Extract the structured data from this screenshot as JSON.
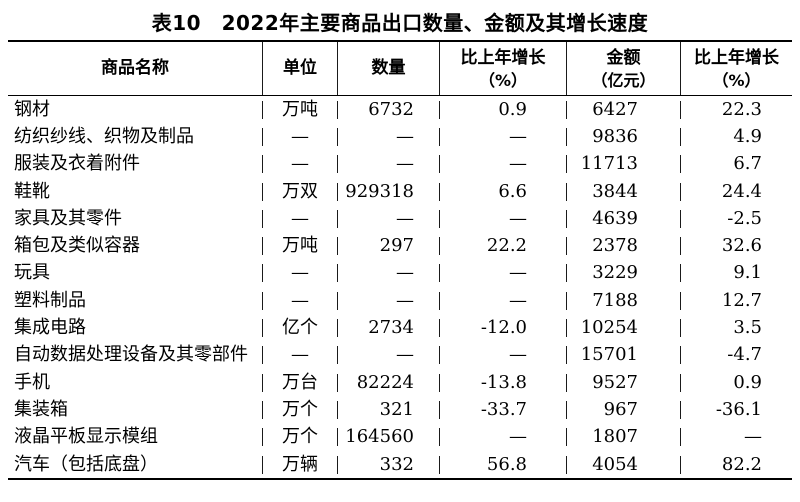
{
  "title": "表10　2022年主要商品出口数量、金额及其增长速度",
  "table": {
    "columns": [
      {
        "label": "商品名称"
      },
      {
        "label": "单位"
      },
      {
        "label": "数量"
      },
      {
        "label": "比上年增长",
        "sub": "（%）"
      },
      {
        "label": "金额",
        "sub": "（亿元）"
      },
      {
        "label": "比上年增长",
        "sub": "（%）"
      }
    ],
    "rows": [
      [
        "钢材",
        "万吨",
        "6732",
        "0.9",
        "6427",
        "22.3"
      ],
      [
        "纺织纱线、织物及制品",
        "—",
        "—",
        "—",
        "9836",
        "4.9"
      ],
      [
        "服装及衣着附件",
        "—",
        "—",
        "—",
        "11713",
        "6.7"
      ],
      [
        "鞋靴",
        "万双",
        "929318",
        "6.6",
        "3844",
        "24.4"
      ],
      [
        "家具及其零件",
        "—",
        "—",
        "—",
        "4639",
        "-2.5"
      ],
      [
        "箱包及类似容器",
        "万吨",
        "297",
        "22.2",
        "2378",
        "32.6"
      ],
      [
        "玩具",
        "—",
        "—",
        "—",
        "3229",
        "9.1"
      ],
      [
        "塑料制品",
        "—",
        "—",
        "—",
        "7188",
        "12.7"
      ],
      [
        "集成电路",
        "亿个",
        "2734",
        "-12.0",
        "10254",
        "3.5"
      ],
      [
        "自动数据处理设备及其零部件",
        "—",
        "—",
        "—",
        "15701",
        "-4.7"
      ],
      [
        "手机",
        "万台",
        "82224",
        "-13.8",
        "9527",
        "0.9"
      ],
      [
        "集装箱",
        "万个",
        "321",
        "-33.7",
        "967",
        "-36.1"
      ],
      [
        "液晶平板显示模组",
        "万个",
        "164560",
        "—",
        "1807",
        "—"
      ],
      [
        "汽车（包括底盘）",
        "万辆",
        "332",
        "56.8",
        "4054",
        "82.2"
      ]
    ]
  },
  "colors": {
    "text": "#000000",
    "border": "#000000",
    "background": "#ffffff"
  }
}
